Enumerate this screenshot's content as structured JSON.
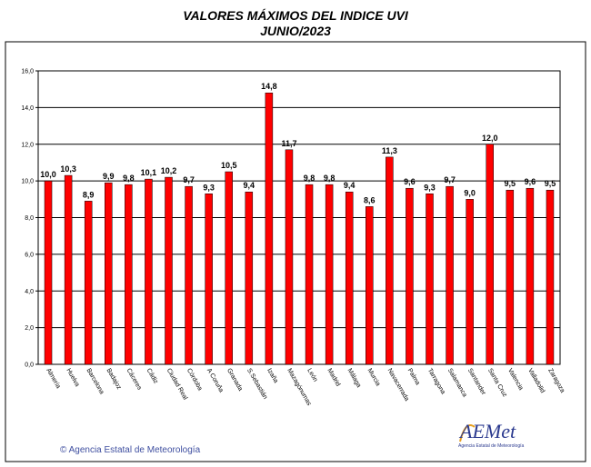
{
  "chart_data": {
    "type": "bar",
    "title": "VALORES MÁXIMOS DEL INDICE UVI",
    "subtitle": "JUNIO/2023",
    "categories": [
      "Almería",
      "Huelva",
      "Barcelona",
      "Badajoz",
      "Cáceres",
      "Cádiz",
      "Ciudad Real",
      "Córdoba",
      "A Coruña",
      "Granada",
      "S.Sebastián",
      "Izaña",
      "Mazagónumas",
      "León",
      "Madrid",
      "Málaga",
      "Murcia",
      "Navacerrada",
      "Palma",
      "Tarragona",
      "Salamanca",
      "Santander",
      "Santa Cruz",
      "Valencia",
      "Valladolid",
      "Zaragoza"
    ],
    "values": [
      10.0,
      10.3,
      8.9,
      9.9,
      9.8,
      10.1,
      10.2,
      9.7,
      9.3,
      10.5,
      9.4,
      14.8,
      11.7,
      9.8,
      9.8,
      9.4,
      8.6,
      11.3,
      9.6,
      9.3,
      9.7,
      9.0,
      12.0,
      9.5,
      9.6,
      9.5
    ],
    "value_labels": [
      "10,0",
      "10,3",
      "8,9",
      "9,9",
      "9,8",
      "10,1",
      "10,2",
      "9,7",
      "9,3",
      "10,5",
      "9,4",
      "14,8",
      "11,7",
      "9,8",
      "9,8",
      "9,4",
      "8,6",
      "11,3",
      "9,6",
      "9,3",
      "9,7",
      "9,0",
      "12,0",
      "9,5",
      "9,6",
      "9,5"
    ],
    "ylim": [
      0,
      16
    ],
    "yticks": [
      "0,0",
      "2,0",
      "4,0",
      "6,0",
      "8,0",
      "10,0",
      "12,0",
      "14,0",
      "16,0"
    ],
    "grid": true,
    "bar_color": "#ff0000",
    "xlabel": "",
    "ylabel": ""
  },
  "footer": {
    "copyright": "© Agencia Estatal de Meteorología",
    "logo_text": "AEMet",
    "logo_subtext": "Agencia Estatal de Meteorología"
  },
  "colors": {
    "bar": "#ff0000",
    "plot_background": "#ffffff",
    "footer_text": "#3f4fa0"
  }
}
